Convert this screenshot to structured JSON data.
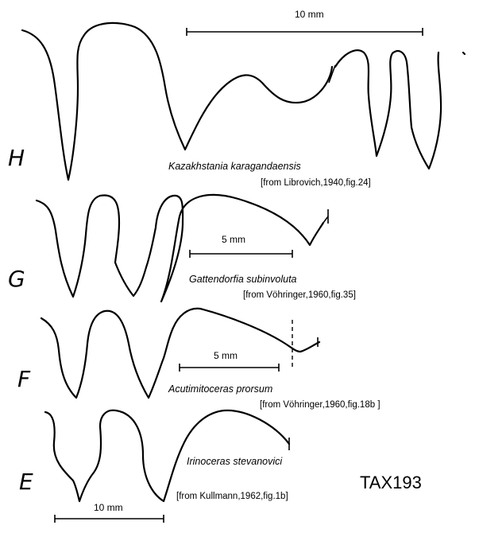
{
  "plate_code": "TAX193",
  "sutures": [
    {
      "letter": "H",
      "species": "Kazakhstania  karagandaensis",
      "source": "[from Librovich,1940,fig.24]",
      "scale_bar_label": "10 mm"
    },
    {
      "letter": "G",
      "species": "Gattendorfia subinvoluta",
      "source": "[from Vöhringer,1960,fig.35]",
      "scale_bar_label": "5 mm"
    },
    {
      "letter": "F",
      "species": "Acutimitoceras prorsum",
      "source": "[from Vöhringer,1960,fig.18b ]",
      "scale_bar_label": "5 mm"
    },
    {
      "letter": "E",
      "species": "Irinoceras stevanovici",
      "source": "[from Kullmann,1962,fig.1b]",
      "scale_bar_label": "10 mm"
    }
  ]
}
